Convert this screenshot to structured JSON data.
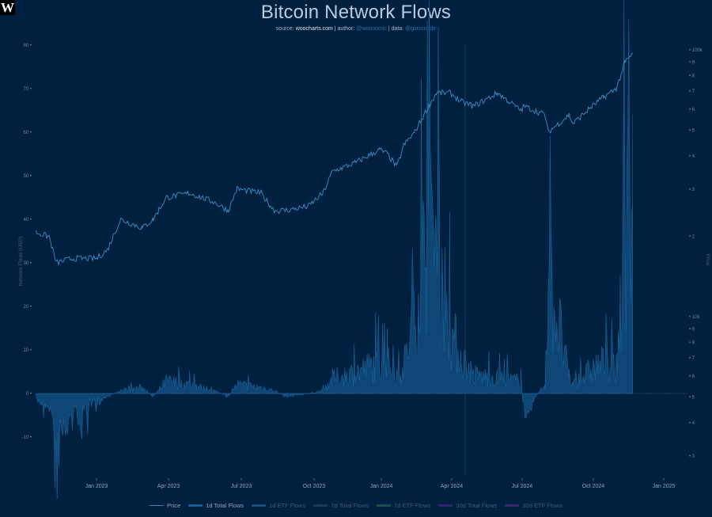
{
  "header": {
    "logo_text": "W",
    "title": "Bitcoin Network Flows",
    "source_label": "source:",
    "source_value": "woocharts.com",
    "author_label": "author:",
    "author_value": "@woonomic",
    "data_label": "data:",
    "data_value": "@glassnode",
    "separator": "|"
  },
  "axes": {
    "left_label": "Network Flows (USD)",
    "right_label": "Price",
    "left_ticks": [
      "80",
      "70",
      "60",
      "50",
      "40",
      "30",
      "20",
      "10",
      "0",
      "-10"
    ],
    "right_ticks": [
      "100k",
      "9",
      "8",
      "7",
      "6",
      "5",
      "4",
      "3",
      "2",
      "10k",
      "9",
      "8",
      "7",
      "6",
      "5",
      "4",
      "3"
    ],
    "x_ticks": [
      "Jan 2023",
      "Apr 2023",
      "Jul 2023",
      "Oct 2023",
      "Jan 2024",
      "Apr 2024",
      "Jul 2024",
      "Oct 2024",
      "Jan 2025"
    ]
  },
  "legend": [
    {
      "label": "Price",
      "color": "#5b7ea6",
      "type": "line",
      "active": true
    },
    {
      "label": "1d Total Flows",
      "color": "#1e5a94",
      "type": "bar",
      "active": true
    },
    {
      "label": "1d ETF Flows",
      "color": "#2a6fa8",
      "type": "bar",
      "active": false
    },
    {
      "label": "7d Total Flows",
      "color": "#24506a",
      "type": "bar",
      "active": false
    },
    {
      "label": "7d ETF Flows",
      "color": "#2c6e5a",
      "type": "bar",
      "active": false
    },
    {
      "label": "30d Total Flows",
      "color": "#4a2c8a",
      "type": "bar",
      "active": false
    },
    {
      "label": "30d ETF Flows",
      "color": "#5a2f8c",
      "type": "bar",
      "active": false
    }
  ],
  "colors": {
    "background": "#00203f",
    "price_line": "#3d8fc4",
    "flows_fill": "#0f4a78",
    "flows_stroke": "#1e6aa3",
    "zero_line": "#3a5f86"
  },
  "chart_data": {
    "type": "area",
    "title": "Bitcoin Network Flows",
    "subtitle": "source: woocharts.com | author: @woonomic | data: @glassnode",
    "xlabel": "",
    "ylabel": "Network Flows (USD)",
    "y2label": "Price",
    "ylim": [
      -17,
      82
    ],
    "y2_scale": "log",
    "y2_range": [
      3000,
      100000
    ],
    "grid": false,
    "legend_position": "bottom",
    "x_tick_labels": [
      "Jan 2023",
      "Apr 2023",
      "Jul 2023",
      "Oct 2023",
      "Jan 2024",
      "Apr 2024",
      "Jul 2024",
      "Oct 2024",
      "Jan 2025"
    ],
    "x": [
      "2022-10-15",
      "2022-11-01",
      "2022-11-10",
      "2022-12-01",
      "2023-01-01",
      "2023-01-15",
      "2023-02-01",
      "2023-03-01",
      "2023-03-15",
      "2023-04-01",
      "2023-05-01",
      "2023-06-01",
      "2023-06-20",
      "2023-07-01",
      "2023-08-01",
      "2023-08-18",
      "2023-09-01",
      "2023-10-01",
      "2023-10-20",
      "2023-11-01",
      "2023-12-01",
      "2024-01-01",
      "2024-01-11",
      "2024-01-23",
      "2024-02-01",
      "2024-02-15",
      "2024-03-01",
      "2024-03-14",
      "2024-04-01",
      "2024-04-15",
      "2024-05-01",
      "2024-06-01",
      "2024-07-01",
      "2024-07-05",
      "2024-08-01",
      "2024-08-05",
      "2024-09-01",
      "2024-09-06",
      "2024-10-01",
      "2024-10-15",
      "2024-11-01",
      "2024-11-12",
      "2024-11-22"
    ],
    "series": [
      {
        "name": "Price (plotted on left scale units)",
        "values": [
          37,
          36,
          30,
          31,
          31,
          33,
          40,
          38,
          40,
          45,
          46,
          44,
          42,
          47,
          46,
          42,
          42,
          43,
          46,
          51,
          53,
          56,
          55,
          52,
          57,
          60,
          65,
          69,
          69,
          67,
          66,
          69,
          65,
          66,
          64,
          60,
          64,
          62,
          66,
          68,
          70,
          76,
          78
        ]
      },
      {
        "name": "1d Total Flows (USD bn)",
        "values": [
          -2,
          -4,
          -17,
          -8,
          -3,
          -1,
          1,
          2,
          -1,
          4,
          3,
          1,
          -1,
          3,
          2,
          1,
          -1,
          0,
          1,
          5,
          7,
          10,
          10,
          6,
          9,
          25,
          50,
          52,
          20,
          12,
          6,
          5,
          4,
          -6,
          3,
          40,
          5,
          3,
          8,
          10,
          8,
          55,
          64
        ]
      }
    ]
  }
}
